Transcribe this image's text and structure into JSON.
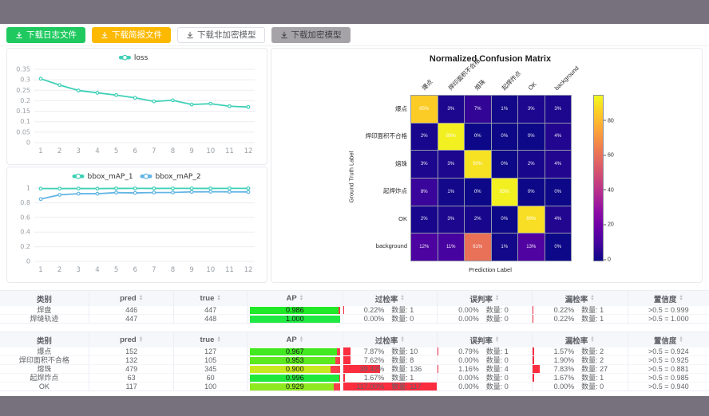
{
  "frame": {
    "bar_color": "#77717d"
  },
  "toolbar": {
    "buttons": [
      {
        "label": "下载日志文件",
        "icon": "download-icon",
        "bg": "#1fc95f",
        "fg": "#ffffff",
        "border": "#1fc95f"
      },
      {
        "label": "下载简报文件",
        "icon": "download-icon",
        "bg": "#fcb900",
        "fg": "#ffffff",
        "border": "#fcb900"
      },
      {
        "label": "下载非加密模型",
        "icon": "download-icon",
        "bg": "#ffffff",
        "fg": "#606266",
        "border": "#dcdfe6"
      },
      {
        "label": "下载加密模型",
        "icon": "download-icon",
        "bg": "#a5a3a8",
        "fg": "#3f3f42",
        "border": "#a5a3a8"
      }
    ]
  },
  "chart_data": [
    {
      "type": "line",
      "id": "loss",
      "x": [
        1,
        2,
        3,
        4,
        5,
        6,
        7,
        8,
        9,
        10,
        11,
        12
      ],
      "series": [
        {
          "name": "loss",
          "color": "#3fd0b7",
          "values": [
            0.305,
            0.275,
            0.249,
            0.238,
            0.227,
            0.214,
            0.197,
            0.202,
            0.182,
            0.186,
            0.174,
            0.17
          ]
        }
      ],
      "ylim": [
        0,
        0.35
      ],
      "yticks": [
        "0",
        "0.05",
        "0.1",
        "0.15",
        "0.2",
        "0.25",
        "0.3",
        "0.35"
      ],
      "legend_position": "top",
      "grid": true
    },
    {
      "type": "line",
      "id": "bbox_map",
      "x": [
        1,
        2,
        3,
        4,
        5,
        6,
        7,
        8,
        9,
        10,
        11,
        12
      ],
      "series": [
        {
          "name": "bbox_mAP_1",
          "color": "#3fd0b7",
          "values": [
            0.993,
            0.993,
            0.994,
            0.993,
            0.995,
            0.996,
            0.995,
            0.996,
            0.996,
            0.995,
            0.996,
            0.996
          ]
        },
        {
          "name": "bbox_mAP_2",
          "color": "#62b5e5",
          "values": [
            0.85,
            0.908,
            0.924,
            0.923,
            0.938,
            0.934,
            0.939,
            0.94,
            0.948,
            0.95,
            0.949,
            0.947
          ]
        }
      ],
      "ylim": [
        0,
        1
      ],
      "yticks": [
        "0",
        "0.2",
        "0.4",
        "0.6",
        "0.8",
        "1"
      ],
      "legend_position": "top",
      "grid": true
    },
    {
      "type": "heatmap",
      "id": "confusion_matrix",
      "title": "Normalized Confusion Matrix",
      "xlabel": "Prediction Label",
      "ylabel": "Ground Truth Label",
      "labels": [
        "爆点",
        "焊印面积不合格",
        "熔珠",
        "起焊炸点",
        "OK",
        "background"
      ],
      "unit": "%",
      "vmax": 95,
      "colorbar_ticks": [
        0,
        20,
        40,
        60,
        80
      ],
      "matrix": [
        [
          85,
          3,
          7,
          1,
          3,
          3
        ],
        [
          2,
          93,
          0,
          0,
          0,
          4
        ],
        [
          3,
          3,
          90,
          0,
          2,
          4
        ],
        [
          8,
          1,
          0,
          93,
          0,
          0
        ],
        [
          2,
          3,
          2,
          0,
          89,
          4
        ],
        [
          12,
          11,
          61,
          1,
          13,
          0
        ]
      ]
    }
  ],
  "tables": [
    {
      "headers": [
        {
          "label": "类别",
          "sortable": false
        },
        {
          "label": "pred",
          "sortable": true
        },
        {
          "label": "true",
          "sortable": true
        },
        {
          "label": "AP",
          "sortable": true
        },
        {
          "label": "过检率",
          "sortable": true
        },
        {
          "label": "误判率",
          "sortable": true
        },
        {
          "label": "漏检率",
          "sortable": true
        },
        {
          "label": "置信度",
          "sortable": true
        }
      ],
      "rows": [
        {
          "category": "焊盘",
          "pred": "446",
          "true": "447",
          "ap": {
            "text": "0.986",
            "value": 0.986
          },
          "overkill": {
            "pct": "0.22%",
            "value": 0.22,
            "count": "数量: 1"
          },
          "misjudge": {
            "pct": "0.00%",
            "value": 0,
            "count": "数量: 0"
          },
          "miss": {
            "pct": "0.22%",
            "value": 0.22,
            "count": "数量: 1"
          },
          "confidence": ">0.5 = 0.999"
        },
        {
          "category": "焊缝轨迹",
          "pred": "447",
          "true": "448",
          "ap": {
            "text": "1.000",
            "value": 1.0
          },
          "overkill": {
            "pct": "0.00%",
            "value": 0,
            "count": "数量: 0"
          },
          "misjudge": {
            "pct": "0.00%",
            "value": 0,
            "count": "数量: 0"
          },
          "miss": {
            "pct": "0.22%",
            "value": 0.22,
            "count": "数量: 1"
          },
          "confidence": ">0.5 = 1.000"
        }
      ]
    },
    {
      "headers": [
        {
          "label": "类别",
          "sortable": false
        },
        {
          "label": "pred",
          "sortable": true
        },
        {
          "label": "true",
          "sortable": true
        },
        {
          "label": "AP",
          "sortable": true
        },
        {
          "label": "过检率",
          "sortable": true
        },
        {
          "label": "误判率",
          "sortable": true
        },
        {
          "label": "漏检率",
          "sortable": true
        },
        {
          "label": "置信度",
          "sortable": true
        }
      ],
      "rows": [
        {
          "category": "爆点",
          "pred": "152",
          "true": "127",
          "ap": {
            "text": "0.967",
            "value": 0.967
          },
          "overkill": {
            "pct": "7.87%",
            "value": 7.87,
            "count": "数量: 10"
          },
          "misjudge": {
            "pct": "0.79%",
            "value": 0.79,
            "count": "数量: 1"
          },
          "miss": {
            "pct": "1.57%",
            "value": 1.57,
            "count": "数量: 2"
          },
          "confidence": ">0.5 = 0.924"
        },
        {
          "category": "焊印面积不合格",
          "pred": "132",
          "true": "105",
          "ap": {
            "text": "0.953",
            "value": 0.953
          },
          "overkill": {
            "pct": "7.62%",
            "value": 7.62,
            "count": "数量: 8"
          },
          "misjudge": {
            "pct": "0.00%",
            "value": 0,
            "count": "数量: 0"
          },
          "miss": {
            "pct": "1.90%",
            "value": 1.9,
            "count": "数量: 2"
          },
          "confidence": ">0.5 = 0.925"
        },
        {
          "category": "熔珠",
          "pred": "479",
          "true": "345",
          "ap": {
            "text": "0.900",
            "value": 0.9
          },
          "overkill": {
            "pct": "39.42%",
            "value": 39.42,
            "count": "数量: 136"
          },
          "misjudge": {
            "pct": "1.16%",
            "value": 1.16,
            "count": "数量: 4"
          },
          "miss": {
            "pct": "7.83%",
            "value": 7.83,
            "count": "数量: 27"
          },
          "confidence": ">0.5 = 0.881"
        },
        {
          "category": "起焊炸点",
          "pred": "63",
          "true": "60",
          "ap": {
            "text": "0.996",
            "value": 0.996
          },
          "overkill": {
            "pct": "1.67%",
            "value": 1.67,
            "count": "数量: 1"
          },
          "misjudge": {
            "pct": "0.00%",
            "value": 0,
            "count": "数量: 0"
          },
          "miss": {
            "pct": "1.67%",
            "value": 1.67,
            "count": "数量: 1"
          },
          "confidence": ">0.5 = 0.985"
        },
        {
          "category": "OK",
          "pred": "117",
          "true": "100",
          "ap": {
            "text": "0.929",
            "value": 0.929
          },
          "overkill": {
            "pct": "117.00%",
            "value": 117,
            "count": "数量: 117"
          },
          "misjudge": {
            "pct": "0.00%",
            "value": 0,
            "count": "数量: 0"
          },
          "miss": {
            "pct": "0.00%",
            "value": 0,
            "count": "数量: 0"
          },
          "confidence": ">0.5 = 0.940"
        }
      ]
    }
  ]
}
